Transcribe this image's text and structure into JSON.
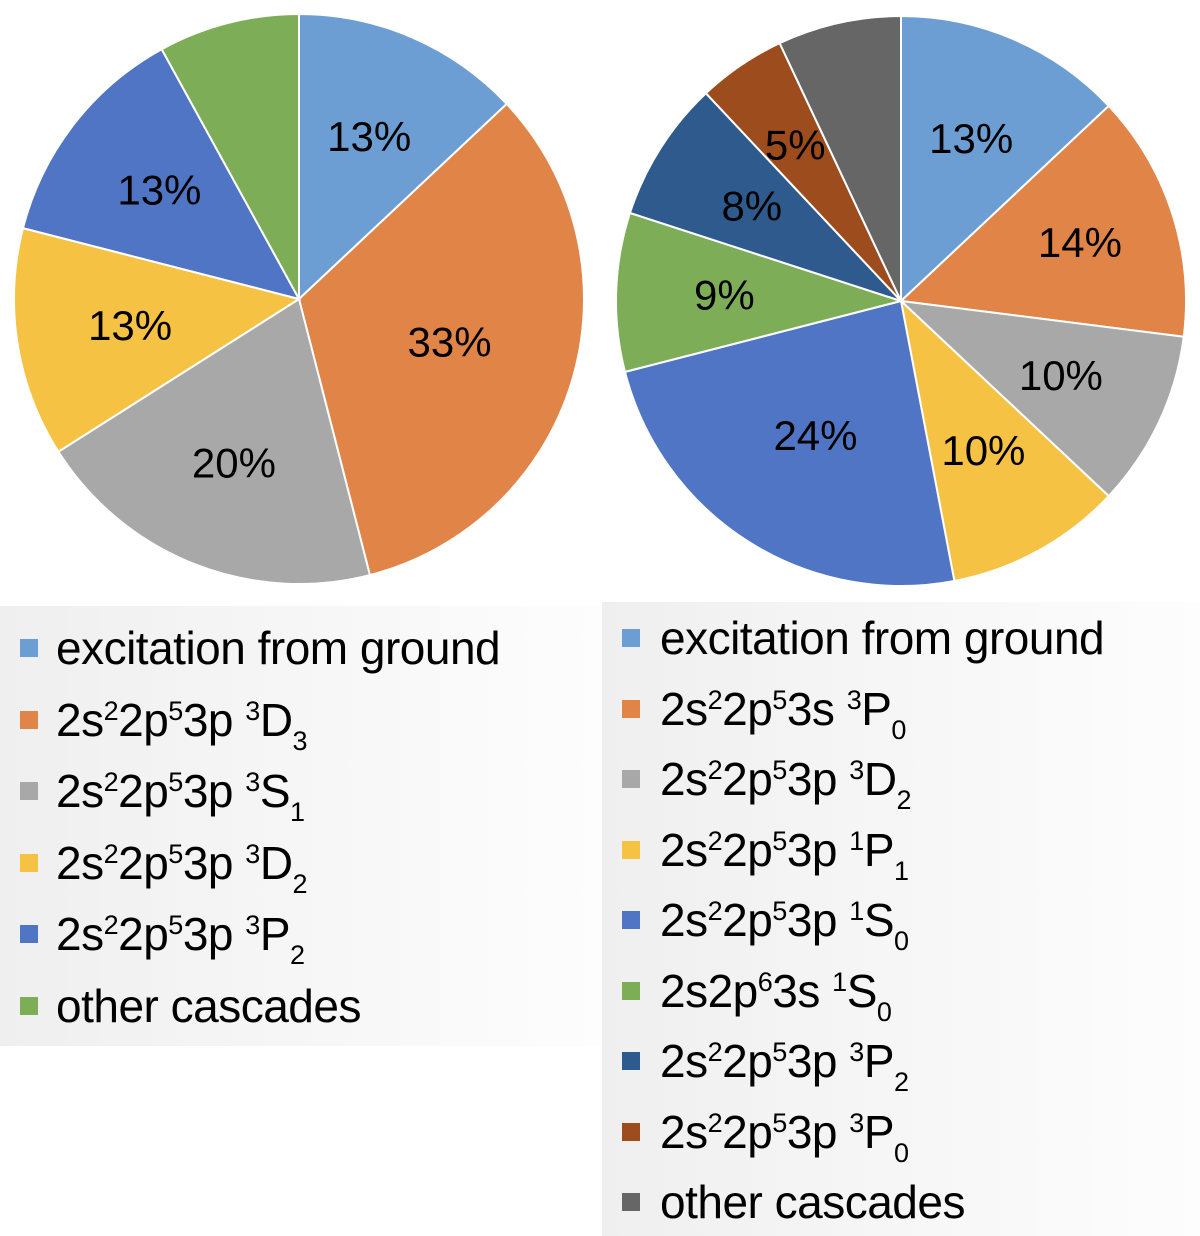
{
  "chart_data": [
    {
      "type": "pie",
      "slices": [
        {
          "label": "excitation from ground",
          "value": 13,
          "data_label": "13%",
          "color": "#6c9ed4"
        },
        {
          "label": "2s22p53p 3D3",
          "value": 33,
          "data_label": "33%",
          "color": "#e08447"
        },
        {
          "label": "2s22p53p 3S1",
          "value": 20,
          "data_label": "20%",
          "color": "#a8a8a8"
        },
        {
          "label": "2s22p53p 3D2",
          "value": 13,
          "data_label": "13%",
          "color": "#f6c244"
        },
        {
          "label": "2s22p53p 3P2",
          "value": 13,
          "data_label": "13%",
          "color": "#4f75c4"
        },
        {
          "label": "other cascades",
          "value": 8,
          "data_label": "",
          "color": "#7ead58"
        }
      ],
      "legend": [
        {
          "text": "excitation from ground",
          "color": "#6c9ed4"
        },
        {
          "parts": [
            [
              "t",
              "2s"
            ],
            [
              "sup",
              "2"
            ],
            [
              "t",
              "2p"
            ],
            [
              "sup",
              "5"
            ],
            [
              "t",
              "3p "
            ],
            [
              "sup",
              "3"
            ],
            [
              "t",
              "D"
            ],
            [
              "sub",
              "3"
            ]
          ],
          "color": "#e08447"
        },
        {
          "parts": [
            [
              "t",
              "2s"
            ],
            [
              "sup",
              "2"
            ],
            [
              "t",
              "2p"
            ],
            [
              "sup",
              "5"
            ],
            [
              "t",
              "3p "
            ],
            [
              "sup",
              "3"
            ],
            [
              "t",
              "S"
            ],
            [
              "sub",
              "1"
            ]
          ],
          "color": "#a8a8a8"
        },
        {
          "parts": [
            [
              "t",
              "2s"
            ],
            [
              "sup",
              "2"
            ],
            [
              "t",
              "2p"
            ],
            [
              "sup",
              "5"
            ],
            [
              "t",
              "3p "
            ],
            [
              "sup",
              "3"
            ],
            [
              "t",
              "D"
            ],
            [
              "sub",
              "2"
            ]
          ],
          "color": "#f6c244"
        },
        {
          "parts": [
            [
              "t",
              "2s"
            ],
            [
              "sup",
              "2"
            ],
            [
              "t",
              "2p"
            ],
            [
              "sup",
              "5"
            ],
            [
              "t",
              "3p "
            ],
            [
              "sup",
              "3"
            ],
            [
              "t",
              "P"
            ],
            [
              "sub",
              "2"
            ]
          ],
          "color": "#4f75c4"
        },
        {
          "text": "other cascades",
          "color": "#7ead58"
        }
      ]
    },
    {
      "type": "pie",
      "slices": [
        {
          "label": "excitation from ground",
          "value": 13,
          "data_label": "13%",
          "color": "#6c9ed4"
        },
        {
          "label": "2s22p53s 3P0",
          "value": 14,
          "data_label": "14%",
          "color": "#e08447"
        },
        {
          "label": "2s22p53p 3D2",
          "value": 10,
          "data_label": "10%",
          "color": "#a8a8a8"
        },
        {
          "label": "2s22p53p 1P1",
          "value": 10,
          "data_label": "10%",
          "color": "#f6c244"
        },
        {
          "label": "2s22p53p 1S0",
          "value": 24,
          "data_label": "24%",
          "color": "#4f75c4"
        },
        {
          "label": "2s2p63s 1S0",
          "value": 9,
          "data_label": "9%",
          "color": "#7ead58"
        },
        {
          "label": "2s22p53p 3P2",
          "value": 8,
          "data_label": "8%",
          "color": "#2f5a8e"
        },
        {
          "label": "2s22p53p 3P0",
          "value": 5,
          "data_label": "5%",
          "color": "#9c4c1d"
        },
        {
          "label": "other cascades",
          "value": 7,
          "data_label": "",
          "color": "#666666"
        }
      ],
      "legend": [
        {
          "text": "excitation from ground",
          "color": "#6c9ed4"
        },
        {
          "parts": [
            [
              "t",
              "2s"
            ],
            [
              "sup",
              "2"
            ],
            [
              "t",
              "2p"
            ],
            [
              "sup",
              "5"
            ],
            [
              "t",
              "3s "
            ],
            [
              "sup",
              "3"
            ],
            [
              "t",
              "P"
            ],
            [
              "sub",
              "0"
            ]
          ],
          "color": "#e08447"
        },
        {
          "parts": [
            [
              "t",
              "2s"
            ],
            [
              "sup",
              "2"
            ],
            [
              "t",
              "2p"
            ],
            [
              "sup",
              "5"
            ],
            [
              "t",
              "3p "
            ],
            [
              "sup",
              "3"
            ],
            [
              "t",
              "D"
            ],
            [
              "sub",
              "2"
            ]
          ],
          "color": "#a8a8a8"
        },
        {
          "parts": [
            [
              "t",
              "2s"
            ],
            [
              "sup",
              "2"
            ],
            [
              "t",
              "2p"
            ],
            [
              "sup",
              "5"
            ],
            [
              "t",
              "3p "
            ],
            [
              "sup",
              "1"
            ],
            [
              "t",
              "P"
            ],
            [
              "sub",
              "1"
            ]
          ],
          "color": "#f6c244"
        },
        {
          "parts": [
            [
              "t",
              "2s"
            ],
            [
              "sup",
              "2"
            ],
            [
              "t",
              "2p"
            ],
            [
              "sup",
              "5"
            ],
            [
              "t",
              "3p "
            ],
            [
              "sup",
              "1"
            ],
            [
              "t",
              "S"
            ],
            [
              "sub",
              "0"
            ]
          ],
          "color": "#4f75c4"
        },
        {
          "parts": [
            [
              "t",
              "2s2p"
            ],
            [
              "sup",
              "6"
            ],
            [
              "t",
              "3s "
            ],
            [
              "sup",
              "1"
            ],
            [
              "t",
              "S"
            ],
            [
              "sub",
              "0"
            ]
          ],
          "color": "#7ead58"
        },
        {
          "parts": [
            [
              "t",
              "2s"
            ],
            [
              "sup",
              "2"
            ],
            [
              "t",
              "2p"
            ],
            [
              "sup",
              "5"
            ],
            [
              "t",
              "3p "
            ],
            [
              "sup",
              "3"
            ],
            [
              "t",
              "P"
            ],
            [
              "sub",
              "2"
            ]
          ],
          "color": "#2f5a8e"
        },
        {
          "parts": [
            [
              "t",
              "2s"
            ],
            [
              "sup",
              "2"
            ],
            [
              "t",
              "2p"
            ],
            [
              "sup",
              "5"
            ],
            [
              "t",
              "3p "
            ],
            [
              "sup",
              "3"
            ],
            [
              "t",
              "P"
            ],
            [
              "sub",
              "0"
            ]
          ],
          "color": "#9c4c1d"
        },
        {
          "text": "other cascades",
          "color": "#666666"
        }
      ]
    }
  ]
}
